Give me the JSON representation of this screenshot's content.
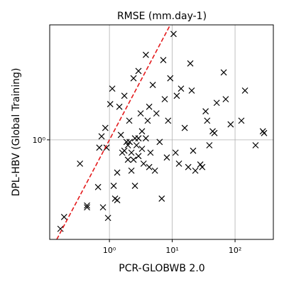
{
  "chart_data": {
    "type": "scatter",
    "title": "RMSE (mm.day-1)",
    "x_label": "PCR-GLOBWB 2.0",
    "y_label": "DPL-HBV (Global Training)",
    "log_x": true,
    "log_y": true,
    "grid": true,
    "xlim": [
      0.112,
      407
    ],
    "ylim": [
      0.145,
      9.3
    ],
    "xticks": [
      {
        "value": 1,
        "label": "10⁰"
      },
      {
        "value": 10,
        "label": "10¹"
      },
      {
        "value": 100,
        "label": "10²"
      }
    ],
    "yticks": [
      {
        "value": 1,
        "label": "10⁰"
      }
    ],
    "identity_line_color": "#e41a1c",
    "series": [
      {
        "color": "#000000",
        "x": [
          0.166,
          0.19,
          0.34,
          0.44,
          0.44,
          0.66,
          0.79,
          0.95,
          0.69,
          0.75,
          0.86,
          0.9,
          1.03,
          1.11,
          1.17,
          1.23,
          1.33,
          1.44,
          1.52,
          1.6,
          1.73,
          1.87,
          1.97,
          2.07,
          2.24,
          2.42,
          2.55,
          2.7,
          2.9,
          2.9,
          3.14,
          3.3,
          3.5,
          3.8,
          4.06,
          4.3,
          4.5,
          4.9,
          5.3,
          5.6,
          6.3,
          6.8,
          7.2,
          7.6,
          8.2,
          8.6,
          9.3,
          10.5,
          11.3,
          11.8,
          12.8,
          13.8,
          15.8,
          18,
          19.4,
          20.4,
          21.5,
          23.3,
          28,
          30,
          34,
          36,
          39,
          44,
          47,
          51,
          66,
          71,
          85,
          126,
          144,
          212,
          277,
          290,
          2.55,
          1.33,
          1.97,
          2.24,
          2.42,
          2.9,
          3.3,
          1.73,
          2.1,
          3.8,
          4.3
        ],
        "values": [
          0.178,
          0.224,
          0.63,
          0.28,
          0.27,
          0.4,
          0.27,
          0.22,
          0.86,
          1.07,
          1.26,
          0.86,
          2.0,
          2.7,
          0.41,
          0.32,
          0.53,
          1.9,
          1.1,
          0.78,
          2.35,
          0.96,
          0.68,
          1.45,
          0.55,
          3.3,
          1.03,
          0.9,
          0.73,
          3.8,
          1.67,
          1.18,
          0.63,
          5.2,
          1.45,
          1.9,
          0.78,
          2.9,
          0.55,
          1.67,
          0.96,
          0.32,
          4.7,
          2.2,
          0.71,
          1.45,
          3.3,
          7.8,
          0.78,
          2.35,
          0.63,
          2.7,
          1.26,
          0.59,
          4.4,
          2.6,
          0.81,
          0.55,
          0.62,
          0.59,
          1.74,
          1.45,
          0.9,
          1.18,
          1.14,
          2.05,
          3.7,
          2.2,
          1.35,
          1.45,
          2.6,
          0.9,
          1.18,
          1.14,
          0.41,
          0.31,
          0.9,
          0.78,
          0.68,
          1.03,
          0.84,
          0.81,
          0.96,
          1.03,
          0.59
        ]
      }
    ]
  }
}
